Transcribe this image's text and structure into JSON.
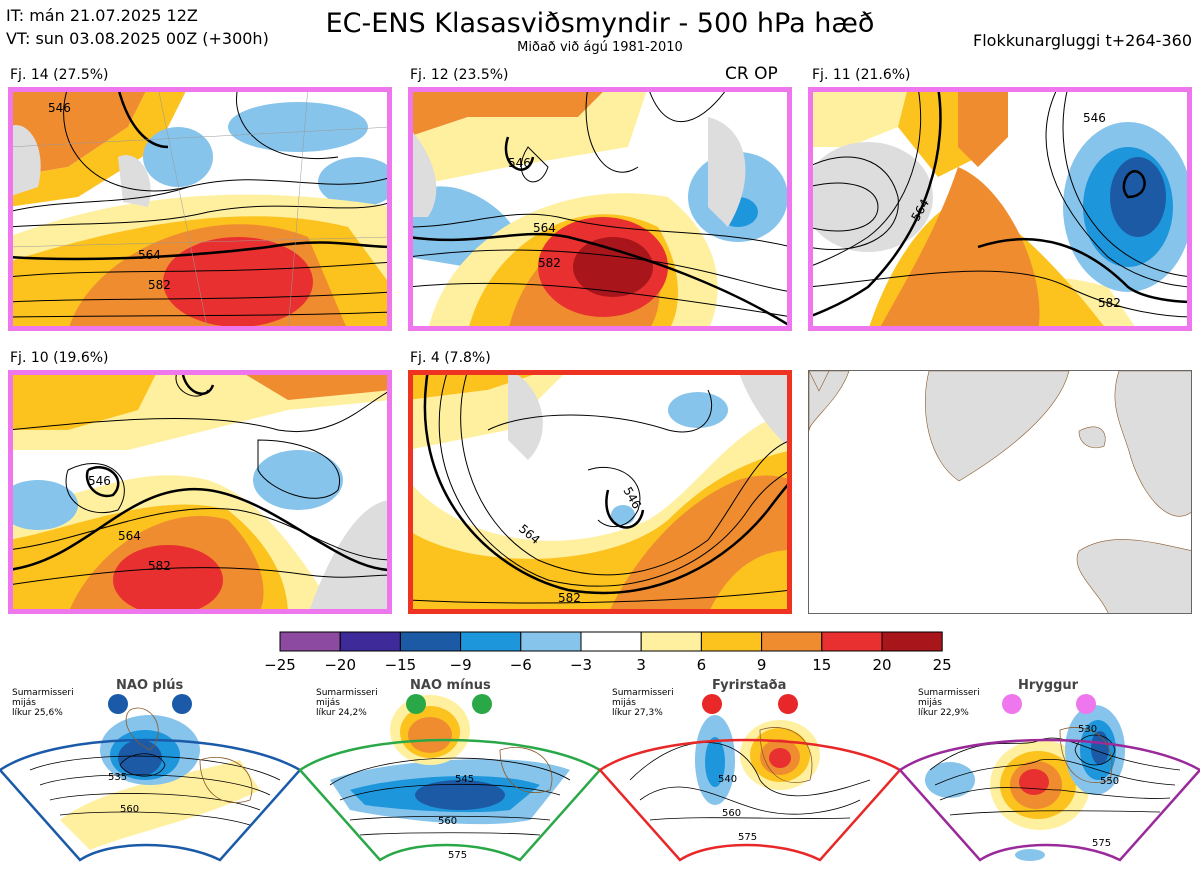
{
  "header": {
    "it_line": "IT: mán 21.07.2025 12Z",
    "vt_line": "VT: sun 03.08.2025 00Z  (+300h)",
    "title": "EC-ENS Klasasviðsmyndir - 500 hPa hæð",
    "subtitle": "Miðað við ágú 1981-2010",
    "window": "Flokkunargluggi t+264-360"
  },
  "clusters": [
    {
      "label": "Fj. 14 (27.5%)",
      "border": "#ee77ee",
      "contours": [
        "546",
        "564",
        "582"
      ]
    },
    {
      "label": "Fj. 12 (23.5%)",
      "border": "#ee77ee",
      "note": "CR OP",
      "contours": [
        "546",
        "564",
        "582"
      ]
    },
    {
      "label": "Fj. 11 (21.6%)",
      "border": "#ee77ee",
      "contours": [
        "546",
        "564",
        "582"
      ]
    },
    {
      "label": "Fj. 10 (19.6%)",
      "border": "#ee77ee",
      "contours": [
        "546",
        "564",
        "582"
      ]
    },
    {
      "label": "Fj. 4 (7.8%)",
      "border": "#ee3322",
      "contours": [
        "546",
        "564",
        "582"
      ]
    }
  ],
  "chart_data": {
    "type": "heatmap",
    "colorbar": {
      "ticks": [
        "−25",
        "−20",
        "−15",
        "−9",
        "−6",
        "−3",
        "3",
        "6",
        "9",
        "15",
        "20",
        "25"
      ],
      "colors": [
        "#8c4aa0",
        "#3e2a98",
        "#1d5aa6",
        "#1e96dc",
        "#86c4ec",
        "#ffffff",
        "#fff0a0",
        "#fcc21e",
        "#f08c30",
        "#e83030",
        "#a8151a"
      ]
    }
  },
  "regimes": [
    {
      "title": "NAO plús",
      "stats": [
        "Sumarmisseri",
        "mijás",
        "líkur 25,6%"
      ],
      "color": "#1a5aa8",
      "contours": [
        "535",
        "560"
      ]
    },
    {
      "title": "NAO mínus",
      "stats": [
        "Sumarmisseri",
        "mijás",
        "líkur 24,2%"
      ],
      "color": "#2aa848",
      "contours": [
        "545",
        "560",
        "575"
      ]
    },
    {
      "title": "Fyrirstaða",
      "stats": [
        "Sumarmisseri",
        "mijás",
        "líkur 27,3%"
      ],
      "color": "#e82828",
      "contours": [
        "540",
        "560",
        "575"
      ]
    },
    {
      "title": "Hryggur",
      "stats": [
        "Sumarmisseri",
        "mijás",
        "líkur 22,9%"
      ],
      "color": "#9a2a9a",
      "dot": "#ee77ee",
      "contours": [
        "530",
        "550",
        "575"
      ]
    }
  ]
}
